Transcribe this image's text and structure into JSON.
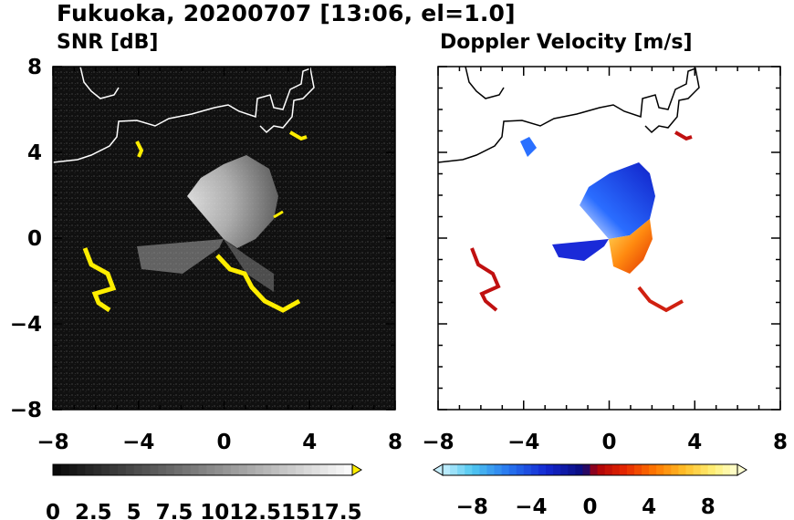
{
  "header": {
    "title": "Fukuoka, 20200707 [13:06, el=1.0]"
  },
  "panels": {
    "left_title": "SNR [dB]",
    "right_title": "Doppler Velocity [m/s]"
  },
  "colors": {
    "coastline_left": "#ffffff",
    "coastline_right": "#000000",
    "snr_high": "#ffee00",
    "velocity_negative": "#1e3cff",
    "velocity_positive": "#ff5a00"
  },
  "chart_data": [
    {
      "type": "heatmap",
      "title": "SNR [dB]",
      "xlim": [
        -8,
        8
      ],
      "ylim": [
        -8,
        8
      ],
      "x_ticks": [
        "−8",
        "−4",
        "0",
        "4",
        "8"
      ],
      "y_ticks": [
        "8",
        "4",
        "0",
        "−4",
        "−8"
      ],
      "colorbar": {
        "min": 0,
        "max": 18.5,
        "extend": "max",
        "tick_labels": [
          "0",
          "2.5",
          "5",
          "7.5",
          "10",
          "12.5",
          "15",
          "17.5"
        ]
      }
    },
    {
      "type": "heatmap",
      "title": "Doppler Velocity [m/s]",
      "xlim": [
        -8,
        8
      ],
      "ylim": [
        -8,
        8
      ],
      "x_ticks": [
        "−8",
        "−4",
        "0",
        "4",
        "8"
      ],
      "y_ticks": [],
      "colorbar": {
        "min": -10,
        "max": 10,
        "extend": "both",
        "tick_labels": [
          "−8",
          "−4",
          "0",
          "4",
          "8"
        ]
      }
    }
  ]
}
